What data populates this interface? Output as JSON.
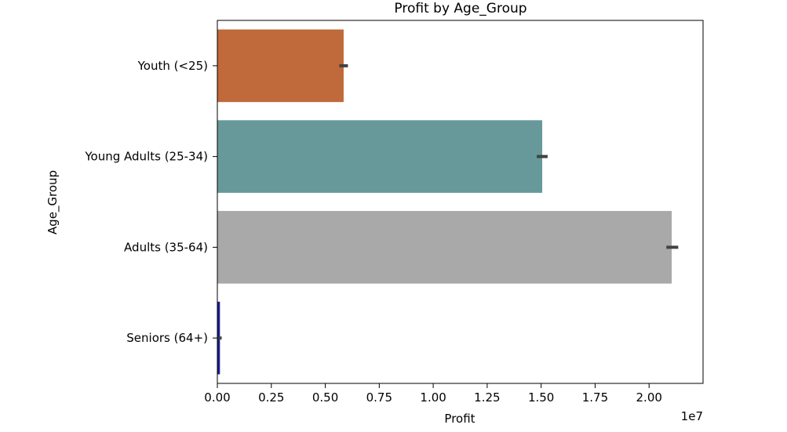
{
  "chart_data": {
    "type": "bar",
    "orientation": "horizontal",
    "title": "Profit by Age_Group",
    "xlabel": "Profit",
    "ylabel": "Age_Group",
    "x_scale_label": "1e7",
    "xlim": [
      0,
      2.25
    ],
    "x_ticks": [
      0.0,
      0.25,
      0.5,
      0.75,
      1.0,
      1.25,
      1.5,
      1.75,
      2.0
    ],
    "x_tick_labels": [
      "0.00",
      "0.25",
      "0.50",
      "0.75",
      "1.00",
      "1.25",
      "1.50",
      "1.75",
      "2.00"
    ],
    "categories": [
      "Youth (<25)",
      "Young Adults (25-34)",
      "Adults (35-64)",
      "Seniors (64+)"
    ],
    "values": [
      0.585,
      1.505,
      2.105,
      0.012
    ],
    "error_low": [
      0.565,
      1.48,
      2.08,
      0.005
    ],
    "error_high": [
      0.605,
      1.53,
      2.135,
      0.02
    ],
    "colors": [
      "#c0693a",
      "#67999a",
      "#a9a9a9",
      "#1c1c8c"
    ],
    "grid": false,
    "legend": "none"
  }
}
